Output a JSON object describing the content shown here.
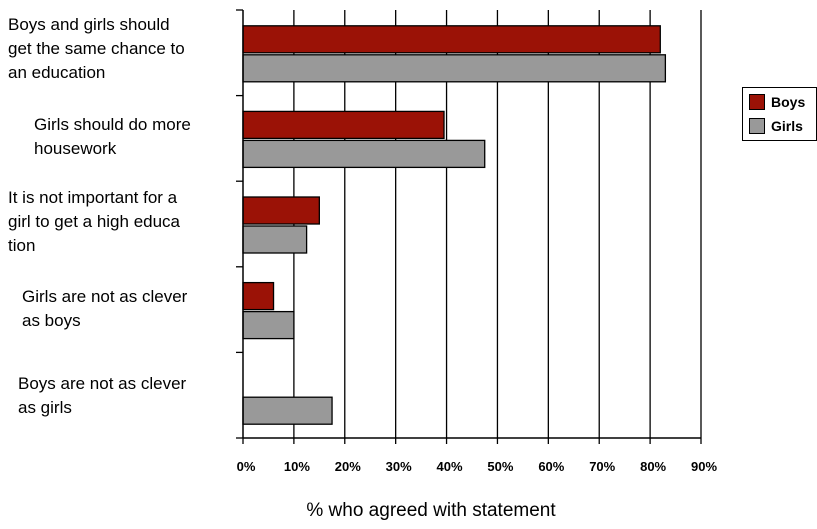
{
  "chart_data": {
    "type": "bar",
    "orientation": "horizontal",
    "categories": [
      [
        "Boys and girls should",
        "get the same chance to",
        "an education"
      ],
      [
        "Girls should do more",
        "housework"
      ],
      [
        "It is not important for a",
        "girl to get a high educa",
        "tion"
      ],
      [
        "Girls are not as clever",
        "as boys"
      ],
      [
        "Boys are not as clever",
        "as girls"
      ]
    ],
    "series": [
      {
        "name": "Boys",
        "color": "#9b1206",
        "values": [
          82,
          39.5,
          15,
          6,
          0
        ]
      },
      {
        "name": "Girls",
        "color": "#999999",
        "values": [
          83,
          47.5,
          12.5,
          10,
          17.5
        ]
      }
    ],
    "xticks": [
      "0%",
      "10%",
      "20%",
      "30%",
      "40%",
      "50%",
      "60%",
      "70%",
      "80%",
      "90%"
    ],
    "xlim": [
      0,
      90
    ],
    "xlabel": "% who agreed with statement",
    "ylabel": "",
    "title": "",
    "grid": "vertical",
    "legend_position": "right"
  }
}
